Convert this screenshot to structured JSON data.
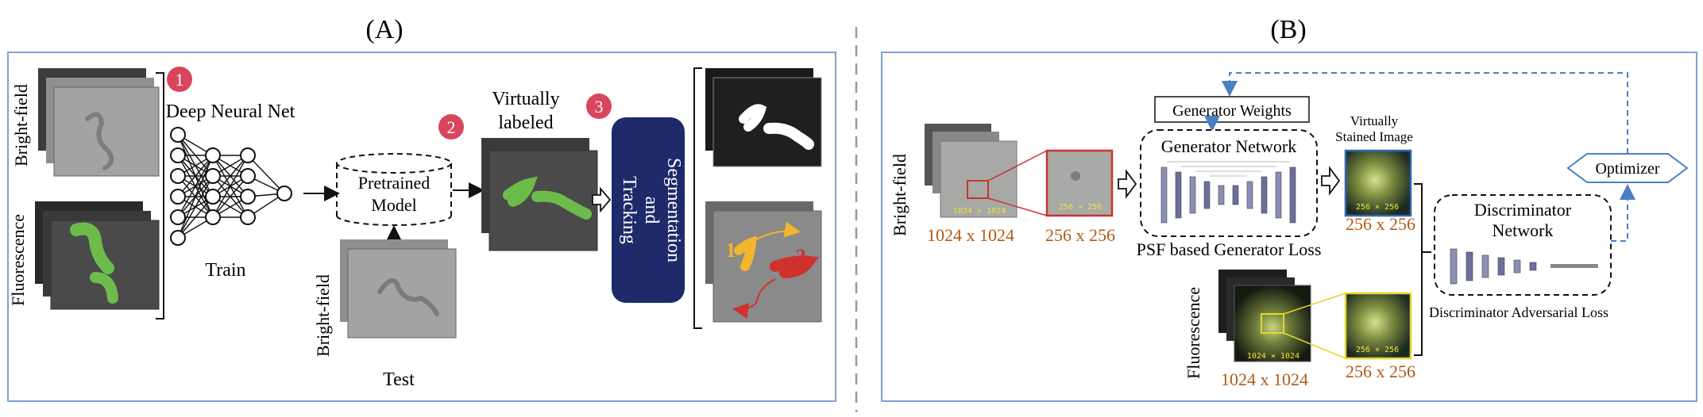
{
  "panel_a": {
    "label": "(A)",
    "bright_field_label": "Bright-field",
    "fluorescence_label": "Fluorescence",
    "step1": "1",
    "network_title": "Deep Neural Net",
    "train_label": "Train",
    "pretrained_line1": "Pretrained",
    "pretrained_line2": "Model",
    "test_bright_field_label": "Bright-field",
    "test_label": "Test",
    "step2": "2",
    "virtually_line1": "Virtually",
    "virtually_line2": "labeled",
    "step3": "3",
    "seg_line1": "Segmentation",
    "seg_line2": "and",
    "seg_line3": "Tracking",
    "track1": "1",
    "track2": "2"
  },
  "panel_b": {
    "label": "(B)",
    "bright_field_label": "Bright-field",
    "fluorescence_label": "Fluorescence",
    "bf_image_size_inset": "1024 × 1024",
    "bf_image_size": "1024 x 1024",
    "bf_crop_size_inset": "256 × 256",
    "bf_crop_size": "256 x 256",
    "generator_weights": "Generator Weights",
    "generator_network": "Generator Network",
    "psf_loss": "PSF based Generator Loss",
    "virtual_stained_line1": "Virtually",
    "virtual_stained_line2": "Stained Image",
    "vs_size_inset": "256 × 256",
    "vs_size": "256 x 256",
    "optimizer": "Optimizer",
    "discriminator_line1": "Discriminator",
    "discriminator_line2": "Network",
    "discriminator_loss": "Discriminator Adversarial Loss",
    "fl_image_size_inset": "1024 × 1024",
    "fl_image_size": "1024 x 1024",
    "fl_crop_size_inset": "256 × 256",
    "fl_crop_size": "256 x 256"
  },
  "colors": {
    "panel_border": "#7ba3d6",
    "step_badge": "#d9455c",
    "cell_green": "#6dbb4a",
    "seg_box": "#1f2a6b",
    "size_label": "#b05a14",
    "inset_text": "#f2e23c",
    "dashed_blue": "#4a7fc4",
    "crop_red": "#d0312d",
    "crop_yellow": "#e3d72d"
  }
}
